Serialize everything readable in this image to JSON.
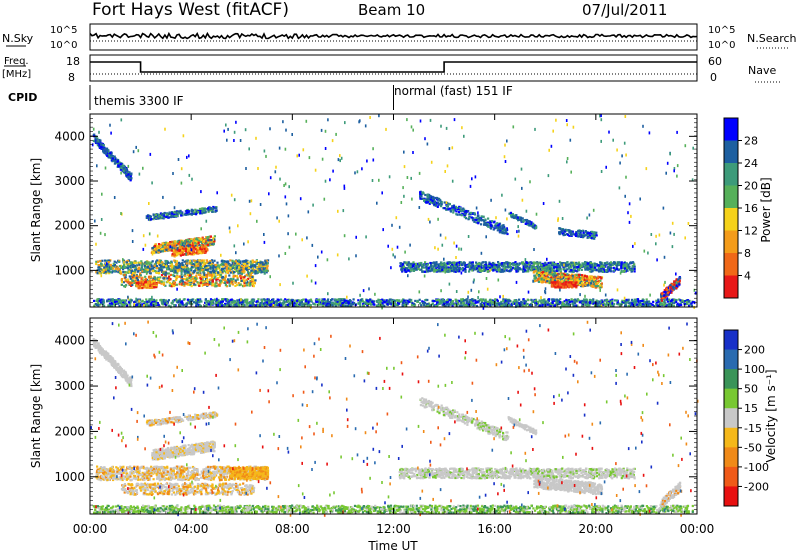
{
  "header": {
    "station": "Fort Hays West (fitACF)",
    "beam": "Beam 10",
    "date": "07/Jul/2011"
  },
  "aux": {
    "nsky_label": "N.Sky",
    "nsky_top": "10^5",
    "nsky_bottom": "10^0",
    "nsearch_label": "N.Search",
    "nsearch_top": "10^5",
    "nsearch_bottom": "10^0",
    "freq_label": "Freq.",
    "freq_unit": "[MHz]",
    "freq_top": "18",
    "freq_bottom": "8",
    "nave_label": "Nave",
    "nave_top": "60",
    "nave_bottom": "0",
    "cpid_label": "CPID",
    "cpid_left": "themis 3300 IF",
    "cpid_right": "normal (fast) 151 IF",
    "cpid_switch_ut": 12
  },
  "chart_data": [
    {
      "type": "heatmap",
      "name": "power",
      "ylabel": "Slant Range [km]",
      "y_ticks": [
        "1000",
        "2000",
        "3000",
        "4000"
      ],
      "y_tick_values": [
        1000,
        2000,
        3000,
        4000
      ],
      "ylim": [
        180,
        4500
      ],
      "xlim": [
        0,
        24
      ],
      "colorbar_label": "Power [dB]",
      "colorbar_ticks": [
        "4",
        "8",
        "12",
        "16",
        "20",
        "24",
        "28"
      ],
      "colorbar_colors": [
        "#0000ff",
        "#1d5fa0",
        "#3d9b7a",
        "#56b05a",
        "#f5d21a",
        "#f49c1a",
        "#f06818",
        "#e81818"
      ]
    },
    {
      "type": "heatmap",
      "name": "velocity",
      "ylabel": "Slant Range [km]",
      "y_ticks": [
        "1000",
        "2000",
        "3000",
        "4000"
      ],
      "y_tick_values": [
        1000,
        2000,
        3000,
        4000
      ],
      "ylim": [
        180,
        4500
      ],
      "xlim": [
        0,
        24
      ],
      "colorbar_label": "Velocity [m s⁻¹]",
      "colorbar_ticks": [
        "200",
        "100",
        "50",
        "15",
        "-15",
        "-50",
        "-100",
        "-200"
      ],
      "colorbar_colors": [
        "#1730c8",
        "#2a6bb0",
        "#3a9458",
        "#78c832",
        "#c8c8c8",
        "#f5b81a",
        "#f08a18",
        "#f05a18",
        "#e81010"
      ]
    }
  ],
  "xaxis": {
    "label": "Time UT",
    "ticks": [
      "00:00",
      "04:00",
      "08:00",
      "12:00",
      "16:00",
      "20:00",
      "00:00"
    ],
    "tick_values": [
      0,
      4,
      8,
      12,
      16,
      20,
      24
    ]
  }
}
